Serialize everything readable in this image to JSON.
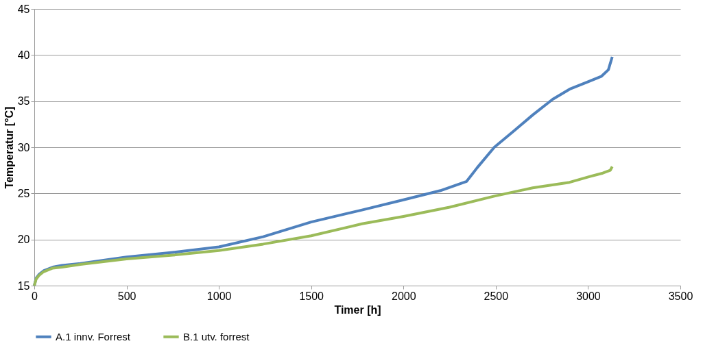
{
  "chart_data": {
    "type": "line",
    "xlabel": "Timer [h]",
    "ylabel": "Temperatur [°C]",
    "xlim": [
      0,
      3500
    ],
    "xticks": [
      0,
      500,
      1000,
      1500,
      2000,
      2500,
      3000,
      3500
    ],
    "ylim": [
      15,
      45
    ],
    "yticks": [
      15,
      20,
      25,
      30,
      35,
      40,
      45
    ],
    "grid": "y",
    "legend": "bottom",
    "marker": "none",
    "line_style": "solid",
    "series": [
      {
        "name": "A.1 innv. Forrest",
        "color": "#4f81bd",
        "x": [
          0,
          10,
          25,
          50,
          100,
          150,
          250,
          500,
          750,
          1000,
          1240,
          1500,
          1775,
          2000,
          2200,
          2342,
          2400,
          2492,
          2600,
          2700,
          2808,
          2900,
          3000,
          3073,
          3110,
          3131
        ],
        "values": [
          15.0,
          15.8,
          16.2,
          16.6,
          17.0,
          17.2,
          17.4,
          18.1,
          18.6,
          19.2,
          20.3,
          21.9,
          23.2,
          24.3,
          25.3,
          26.3,
          27.8,
          30.0,
          31.8,
          33.5,
          35.2,
          36.3,
          37.1,
          37.7,
          38.4,
          39.8
        ]
      },
      {
        "name": "B.1 utv. forrest",
        "color": "#9bbb59",
        "x": [
          0,
          10,
          25,
          50,
          100,
          150,
          250,
          500,
          750,
          1000,
          1240,
          1500,
          1775,
          2000,
          2250,
          2492,
          2700,
          2900,
          3004,
          3080,
          3120,
          3131
        ],
        "values": [
          15.0,
          15.7,
          16.1,
          16.5,
          16.9,
          17.0,
          17.3,
          17.9,
          18.3,
          18.8,
          19.5,
          20.4,
          21.7,
          22.5,
          23.5,
          24.7,
          25.6,
          26.2,
          26.8,
          27.2,
          27.5,
          27.9
        ]
      }
    ]
  }
}
